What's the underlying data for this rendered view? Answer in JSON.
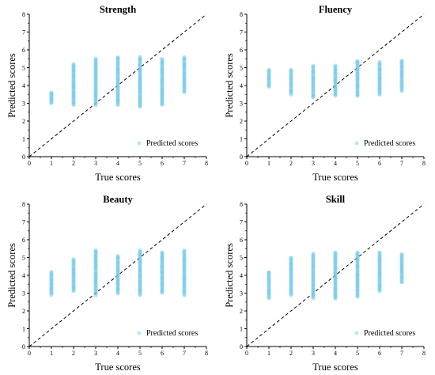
{
  "chart_data": [
    {
      "type": "scatter",
      "title": "Strength",
      "xlabel": "True scores",
      "ylabel": "Predicted scores",
      "xlim": [
        0,
        8
      ],
      "ylim": [
        0,
        8
      ],
      "xticks": [
        "0",
        "1",
        "2",
        "3",
        "4",
        "5",
        "6",
        "7",
        "8"
      ],
      "yticks": [
        "0",
        "1",
        "2",
        "3",
        "4",
        "5",
        "6",
        "7",
        "8"
      ],
      "reference_line": {
        "style": "dashed",
        "from": [
          0,
          0
        ],
        "to": [
          8,
          8
        ]
      },
      "legend": {
        "label": "Predicted scores",
        "position": "bottom-right"
      },
      "series": [
        {
          "name": "Predicted scores",
          "color": "#6ec7e8",
          "ranges": [
            {
              "x": 1,
              "min": 3.0,
              "max": 3.6
            },
            {
              "x": 2,
              "min": 2.9,
              "max": 5.2
            },
            {
              "x": 3,
              "min": 2.9,
              "max": 5.5
            },
            {
              "x": 4,
              "min": 2.9,
              "max": 5.6
            },
            {
              "x": 5,
              "min": 2.8,
              "max": 5.6
            },
            {
              "x": 6,
              "min": 2.9,
              "max": 5.5
            },
            {
              "x": 7,
              "min": 3.6,
              "max": 5.6
            }
          ]
        }
      ]
    },
    {
      "type": "scatter",
      "title": "Fluency",
      "xlabel": "True scores",
      "ylabel": "Predicted scores",
      "xlim": [
        0,
        8
      ],
      "ylim": [
        0,
        8
      ],
      "xticks": [
        "0",
        "1",
        "2",
        "3",
        "4",
        "5",
        "6",
        "7",
        "8"
      ],
      "yticks": [
        "0",
        "1",
        "2",
        "3",
        "4",
        "5",
        "6",
        "7",
        "8"
      ],
      "reference_line": {
        "style": "dashed",
        "from": [
          0,
          0
        ],
        "to": [
          8,
          8
        ]
      },
      "legend": {
        "label": "Predicted scores",
        "position": "bottom-right"
      },
      "series": [
        {
          "name": "Predicted scores",
          "color": "#6ec7e8",
          "ranges": [
            {
              "x": 1,
              "min": 3.9,
              "max": 4.9
            },
            {
              "x": 2,
              "min": 3.5,
              "max": 4.9
            },
            {
              "x": 3,
              "min": 3.3,
              "max": 5.1
            },
            {
              "x": 4,
              "min": 3.4,
              "max": 5.1
            },
            {
              "x": 5,
              "min": 3.4,
              "max": 5.4
            },
            {
              "x": 6,
              "min": 3.5,
              "max": 5.3
            },
            {
              "x": 7,
              "min": 3.7,
              "max": 5.4
            }
          ]
        }
      ]
    },
    {
      "type": "scatter",
      "title": "Beauty",
      "xlabel": "True scores",
      "ylabel": "Predicted scores",
      "xlim": [
        0,
        8
      ],
      "ylim": [
        0,
        8
      ],
      "xticks": [
        "0",
        "1",
        "2",
        "3",
        "4",
        "5",
        "6",
        "7",
        "8"
      ],
      "yticks": [
        "0",
        "1",
        "2",
        "3",
        "4",
        "5",
        "6",
        "7",
        "8"
      ],
      "reference_line": {
        "style": "dashed",
        "from": [
          0,
          0
        ],
        "to": [
          8,
          8
        ]
      },
      "legend": {
        "label": "Predicted scores",
        "position": "bottom-right"
      },
      "series": [
        {
          "name": "Predicted scores",
          "color": "#6ec7e8",
          "ranges": [
            {
              "x": 1,
              "min": 2.9,
              "max": 4.2
            },
            {
              "x": 2,
              "min": 3.1,
              "max": 4.9
            },
            {
              "x": 3,
              "min": 2.9,
              "max": 5.4
            },
            {
              "x": 4,
              "min": 3.0,
              "max": 5.1
            },
            {
              "x": 5,
              "min": 2.9,
              "max": 5.4
            },
            {
              "x": 6,
              "min": 3.0,
              "max": 5.3
            },
            {
              "x": 7,
              "min": 2.9,
              "max": 5.4
            }
          ]
        }
      ]
    },
    {
      "type": "scatter",
      "title": "Skill",
      "xlabel": "True scores",
      "ylabel": "Predicted scores",
      "xlim": [
        0,
        8
      ],
      "ylim": [
        0,
        8
      ],
      "xticks": [
        "0",
        "1",
        "2",
        "3",
        "4",
        "5",
        "6",
        "7",
        "8"
      ],
      "yticks": [
        "0",
        "1",
        "2",
        "3",
        "4",
        "5",
        "6",
        "7",
        "8"
      ],
      "reference_line": {
        "style": "dashed",
        "from": [
          0,
          0
        ],
        "to": [
          8,
          8
        ]
      },
      "legend": {
        "label": "Predicted scores",
        "position": "bottom-right"
      },
      "series": [
        {
          "name": "Predicted scores",
          "color": "#6ec7e8",
          "ranges": [
            {
              "x": 1,
              "min": 2.7,
              "max": 4.2
            },
            {
              "x": 2,
              "min": 2.9,
              "max": 5.0
            },
            {
              "x": 3,
              "min": 2.7,
              "max": 5.2
            },
            {
              "x": 4,
              "min": 2.7,
              "max": 5.3
            },
            {
              "x": 5,
              "min": 2.8,
              "max": 5.3
            },
            {
              "x": 6,
              "min": 3.1,
              "max": 5.3
            },
            {
              "x": 7,
              "min": 3.6,
              "max": 5.2
            }
          ]
        }
      ]
    }
  ]
}
